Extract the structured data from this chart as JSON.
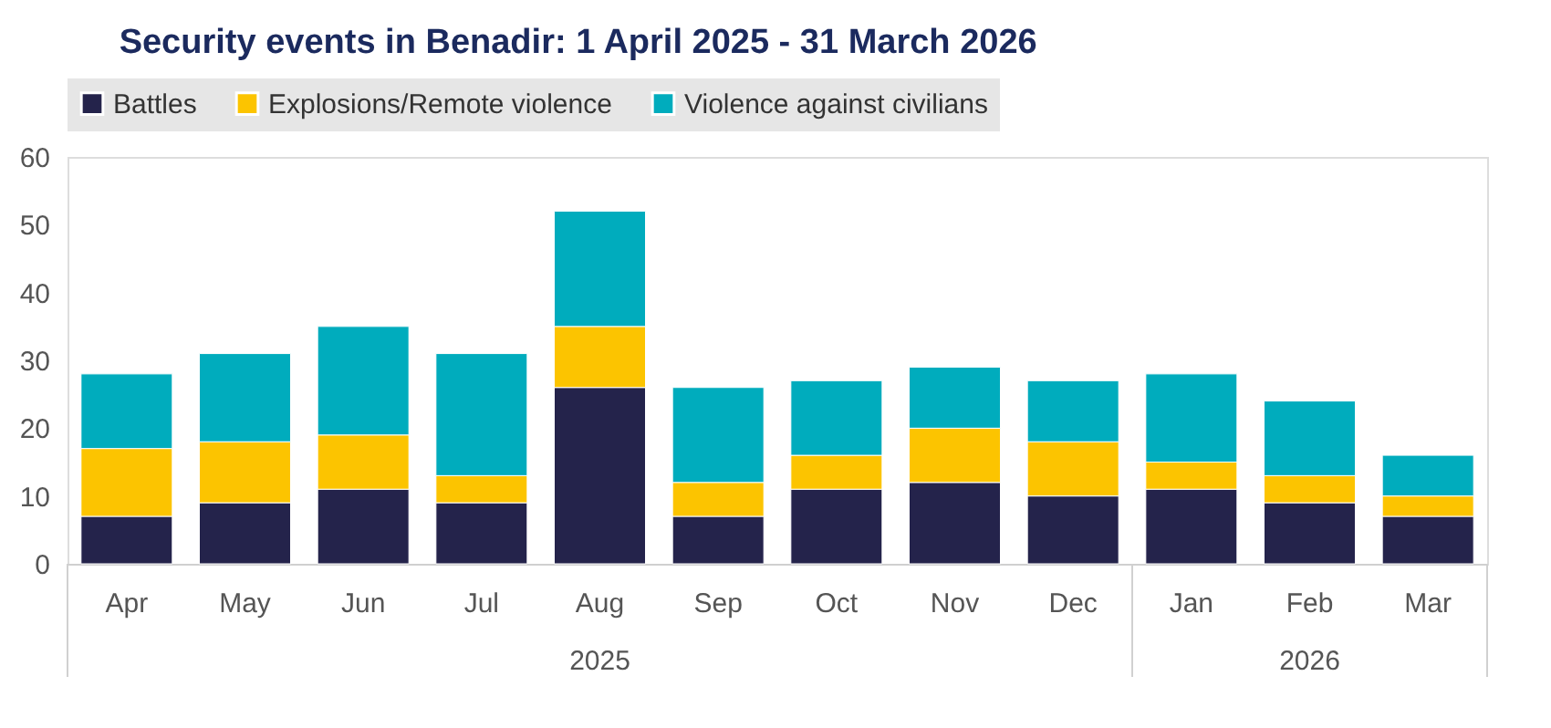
{
  "chart_data": {
    "type": "bar",
    "title": "Security events in Benadir: 1 April 2025 - 31 March 2026",
    "categories": [
      "Apr",
      "May",
      "Jun",
      "Jul",
      "Aug",
      "Sep",
      "Oct",
      "Nov",
      "Dec",
      "Jan",
      "Feb",
      "Mar"
    ],
    "stacked": true,
    "series": [
      {
        "name": "Battles",
        "color": "#24234b",
        "values": [
          7,
          9,
          11,
          9,
          26,
          7,
          11,
          12,
          10,
          11,
          9,
          7
        ]
      },
      {
        "name": "Explosions/Remote violence",
        "color": "#fcc400",
        "values": [
          10,
          9,
          8,
          4,
          9,
          5,
          5,
          8,
          8,
          4,
          4,
          3
        ]
      },
      {
        "name": "Violence against civilians",
        "color": "#00acbd",
        "values": [
          11,
          13,
          16,
          18,
          17,
          14,
          11,
          9,
          9,
          13,
          11,
          6
        ]
      }
    ],
    "annotations": [
      "2025",
      "2026"
    ],
    "ylim": [
      0,
      60
    ],
    "yticks": [
      0,
      10,
      20,
      30,
      40,
      50,
      60
    ],
    "grid": false,
    "legend": "top"
  }
}
